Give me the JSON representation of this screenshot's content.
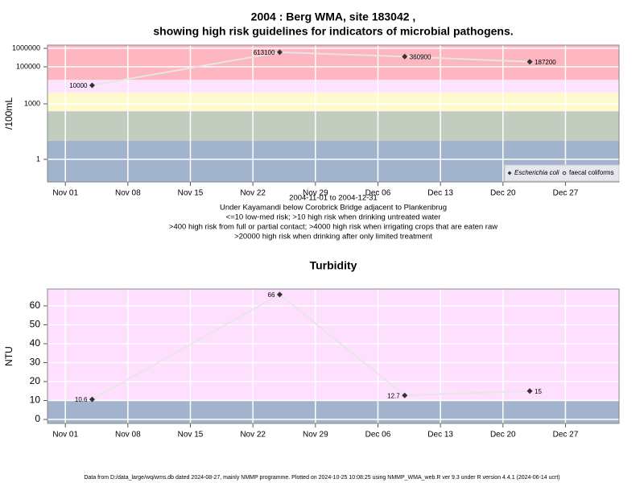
{
  "chart_data": [
    {
      "type": "line",
      "title": "2004 : Berg WMA, site 183042 ,",
      "subtitle": "showing high risk guidelines for indicators of microbial pathogens.",
      "ylabel": "/100mL",
      "ylog": true,
      "ylim": [
        0.06,
        1500000
      ],
      "yticks": [
        1,
        1000,
        100000,
        1000000
      ],
      "xlim": [
        "2004-10-30",
        "2005-01-02"
      ],
      "xticks": [
        {
          "value": "2004-11-01",
          "label": "Nov 01"
        },
        {
          "value": "2004-11-08",
          "label": "Nov 08"
        },
        {
          "value": "2004-11-15",
          "label": "Nov 15"
        },
        {
          "value": "2004-11-22",
          "label": "Nov 22"
        },
        {
          "value": "2004-11-29",
          "label": "Nov 29"
        },
        {
          "value": "2004-12-06",
          "label": "Dec 06"
        },
        {
          "value": "2004-12-13",
          "label": "Dec 13"
        },
        {
          "value": "2004-12-20",
          "label": "Dec 20"
        },
        {
          "value": "2004-12-27",
          "label": "Dec 27"
        }
      ],
      "grid": true,
      "band_limits": [
        10,
        400,
        4000,
        20000
      ],
      "band_colors": [
        "#a2b4cd",
        "#c2cdc0",
        "#fefacd",
        "#fde3fd",
        "#feb6c1"
      ],
      "x": [
        "2004-11-04",
        "2004-11-25",
        "2004-12-09",
        "2004-12-23"
      ],
      "series": [
        {
          "name": "Escherichia coli",
          "color": "#333333",
          "line_color": "#e6e6e6",
          "marker": "diamond",
          "values": [
            10000,
            613100,
            360900,
            187200
          ]
        },
        {
          "name": "faecal coliforms",
          "color": "#333333",
          "line_color": "#e6e6e6",
          "marker": "circle",
          "values": [
            null,
            null,
            null,
            null
          ]
        }
      ],
      "legend": "bottom-right",
      "notes": [
        "2004-11-01 to 2004-12-31",
        "Under Kayamandi below Corobrick Bridge adjacent to Plankenbrug",
        "<=10 low-med risk; >10 high risk when drinking untreated water",
        ">400 high risk from full or partial contact; >4000 high risk when irrigating crops that are eaten raw",
        ">20000 high risk when drinking after only limited treatment"
      ]
    },
    {
      "type": "line",
      "title": "Turbidity",
      "ylabel": "NTU",
      "ylog": false,
      "ylim": [
        -2.1,
        68.9
      ],
      "yticks": [
        0,
        10,
        20,
        30,
        40,
        50,
        60
      ],
      "xlim": [
        "2004-10-30",
        "2005-01-02"
      ],
      "xticks": [
        {
          "value": "2004-11-01",
          "label": "Nov 01"
        },
        {
          "value": "2004-11-08",
          "label": "Nov 08"
        },
        {
          "value": "2004-11-15",
          "label": "Nov 15"
        },
        {
          "value": "2004-11-22",
          "label": "Nov 22"
        },
        {
          "value": "2004-11-29",
          "label": "Nov 29"
        },
        {
          "value": "2004-12-06",
          "label": "Dec 06"
        },
        {
          "value": "2004-12-13",
          "label": "Dec 13"
        },
        {
          "value": "2004-12-20",
          "label": "Dec 20"
        },
        {
          "value": "2004-12-27",
          "label": "Dec 27"
        }
      ],
      "grid": true,
      "band_limits": [
        10
      ],
      "band_colors": [
        "#a2b4cd",
        "#fedffe"
      ],
      "x": [
        "2004-11-04",
        "2004-11-25",
        "2004-12-09",
        "2004-12-23"
      ],
      "series": [
        {
          "name": "Turbidity",
          "color": "#333333",
          "line_color": "#e6e6e6",
          "marker": "diamond",
          "values": [
            10.6,
            66,
            12.7,
            15
          ],
          "value_labels": [
            "10.6",
            "66",
            "12.7",
            "15"
          ]
        }
      ]
    }
  ],
  "footer": "Data from D:/data_large/wq/wms.db dated 2024-08-27, mainly NMMP programme. Plotted on 2024-10-25 10:08:25 using NMMP_WMA_web.R ver 9.3 under R version 4.4.1 (2024-06-14 ucrt)"
}
